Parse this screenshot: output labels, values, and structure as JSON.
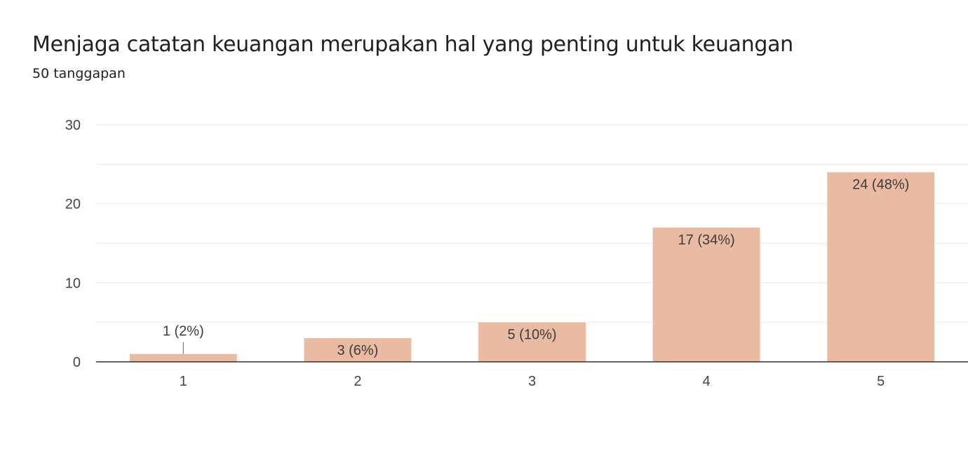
{
  "header": {
    "title": "Menjaga catatan keuangan merupakan hal yang penting untuk keuangan",
    "responses": "50 tanggapan"
  },
  "colors": {
    "bar": "#e8bba2",
    "grid": "#ececec",
    "axis": "#333333"
  },
  "chart_data": {
    "type": "bar",
    "categories": [
      "1",
      "2",
      "3",
      "4",
      "5"
    ],
    "values": [
      1,
      3,
      5,
      17,
      24
    ],
    "data_labels": [
      "1 (2%)",
      "3 (6%)",
      "5 (10%)",
      "17 (34%)",
      "24 (48%)"
    ],
    "ylim": [
      0,
      30
    ],
    "yticks": [
      0,
      10,
      20,
      30
    ],
    "grid": true
  }
}
